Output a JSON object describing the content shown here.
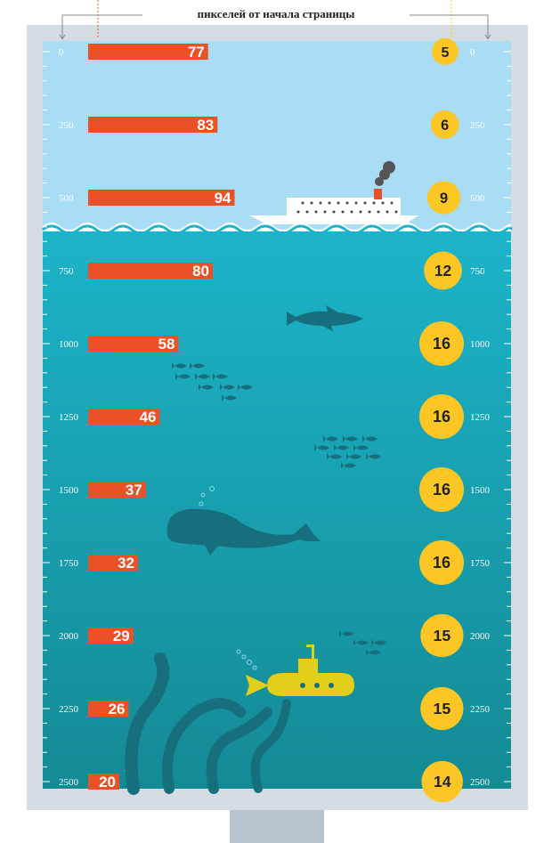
{
  "header": {
    "axis_caption": "пикселей от начала страницы"
  },
  "colors": {
    "sky": "#a9dcf5",
    "sea_top": "#1cb4c9",
    "sea_bottom": "#148a94",
    "bar": "#ea5127",
    "dot": "#fcc724",
    "frame": "#d5dde3",
    "stand": "#b7c4ce",
    "creature": "#176f7e",
    "submarine": "#e2cf1a"
  },
  "icons": [
    "ship-icon",
    "shark-icon",
    "fish-school-icon",
    "whale-icon",
    "submarine-icon",
    "tentacles-icon"
  ],
  "chart_data": {
    "type": "bar",
    "title": "",
    "ylabel": "пикселей от начала страницы",
    "ylim": [
      0,
      2500
    ],
    "ticks": [
      0,
      250,
      500,
      750,
      1000,
      1250,
      1500,
      1750,
      2000,
      2250,
      2500
    ],
    "tick_labels": [
      "0",
      "250",
      "500",
      "750",
      "1000",
      "1250",
      "1500",
      "1750",
      "2000",
      "2250",
      "2500"
    ],
    "categories": [
      0,
      250,
      500,
      750,
      1000,
      1250,
      1500,
      1750,
      2000,
      2250,
      2500
    ],
    "series": [
      {
        "name": "",
        "values": [
          77,
          83,
          94,
          80,
          58,
          46,
          37,
          32,
          29,
          26,
          20
        ],
        "labels": [
          "77",
          "83",
          "94",
          "80",
          "58",
          "46",
          "37",
          "32",
          "29",
          "26",
          "20"
        ]
      },
      {
        "name": "",
        "values": [
          5,
          6,
          9,
          12,
          16,
          16,
          16,
          16,
          15,
          15,
          14
        ],
        "labels": [
          "5",
          "6",
          "9",
          "12",
          "16",
          "16",
          "16",
          "16",
          "15",
          "15",
          "14"
        ]
      }
    ]
  }
}
